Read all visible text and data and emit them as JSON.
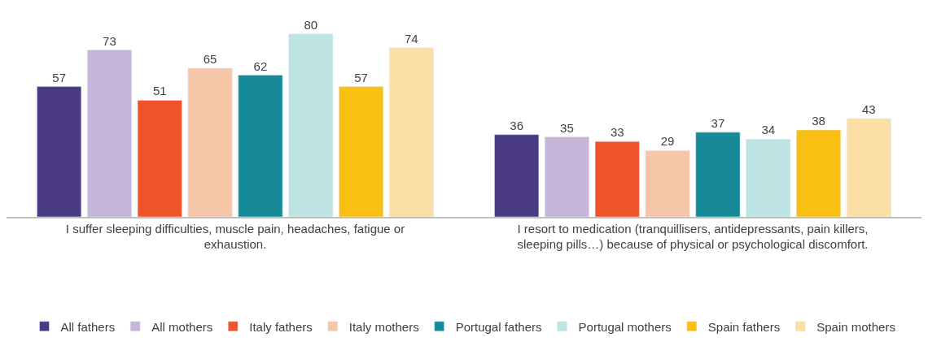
{
  "chart_data": {
    "type": "bar",
    "data_labels": true,
    "legend": "bottom",
    "categories": [
      "I suffer sleeping difficulties, muscle pain, headaches, fatigue or exhaustion.",
      "I resort to medication (tranquillisers, antidepressants, pain killers, sleeping pills…) because of physical or psychological discomfort."
    ],
    "series": [
      {
        "name": "All fathers",
        "color": "#4a3b84",
        "values": [
          57,
          36
        ]
      },
      {
        "name": "All mothers",
        "color": "#c5b5d9",
        "values": [
          73,
          35
        ]
      },
      {
        "name": "Italy fathers",
        "color": "#f0532b",
        "values": [
          51,
          33
        ]
      },
      {
        "name": "Italy mothers",
        "color": "#f7c6a8",
        "values": [
          65,
          29
        ]
      },
      {
        "name": "Portugal fathers",
        "color": "#178a99",
        "values": [
          62,
          37
        ]
      },
      {
        "name": "Portugal mothers",
        "color": "#bde3e3",
        "values": [
          80,
          34
        ]
      },
      {
        "name": "Spain fathers",
        "color": "#f9c013",
        "values": [
          57,
          38
        ]
      },
      {
        "name": "Spain mothers",
        "color": "#fbdfa6",
        "values": [
          74,
          43
        ]
      }
    ]
  }
}
